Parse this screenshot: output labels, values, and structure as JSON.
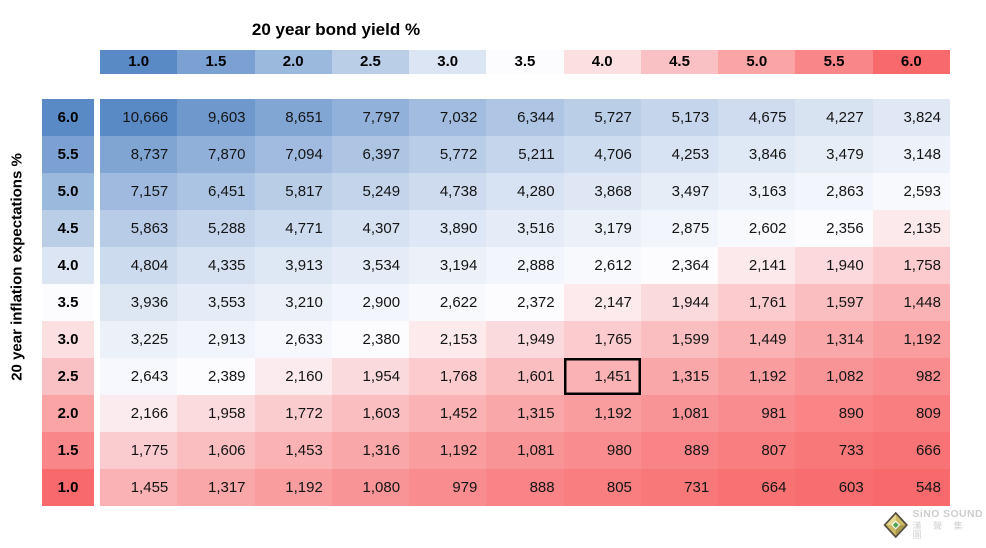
{
  "chart_data": {
    "type": "heatmap",
    "title": "20 year bond yield %",
    "ylabel": "20 year inflation expectations %",
    "x_axis_name": "20 year bond yield %",
    "y_axis_name": "20 year inflation expectations %",
    "x_values": [
      "1.0",
      "1.5",
      "2.0",
      "2.5",
      "3.0",
      "3.5",
      "4.0",
      "4.5",
      "5.0",
      "5.5",
      "6.0"
    ],
    "y_values": [
      "6.0",
      "5.5",
      "5.0",
      "4.5",
      "4.0",
      "3.5",
      "3.0",
      "2.5",
      "2.0",
      "1.5",
      "1.0"
    ],
    "values": [
      [
        10666,
        9603,
        8651,
        7797,
        7032,
        6344,
        5727,
        5173,
        4675,
        4227,
        3824
      ],
      [
        8737,
        7870,
        7094,
        6397,
        5772,
        5211,
        4706,
        4253,
        3846,
        3479,
        3148
      ],
      [
        7157,
        6451,
        5817,
        5249,
        4738,
        4280,
        3868,
        3497,
        3163,
        2863,
        2593
      ],
      [
        5863,
        5288,
        4771,
        4307,
        3890,
        3516,
        3179,
        2875,
        2602,
        2356,
        2135
      ],
      [
        4804,
        4335,
        3913,
        3534,
        3194,
        2888,
        2612,
        2364,
        2141,
        1940,
        1758
      ],
      [
        3936,
        3553,
        3210,
        2900,
        2622,
        2372,
        2147,
        1944,
        1761,
        1597,
        1448
      ],
      [
        3225,
        2913,
        2633,
        2380,
        2153,
        1949,
        1765,
        1599,
        1449,
        1314,
        1192
      ],
      [
        2643,
        2389,
        2160,
        1954,
        1768,
        1601,
        1451,
        1315,
        1192,
        1082,
        982
      ],
      [
        2166,
        1958,
        1772,
        1603,
        1452,
        1315,
        1192,
        1081,
        981,
        890,
        809
      ],
      [
        1775,
        1606,
        1453,
        1316,
        1192,
        1081,
        980,
        889,
        807,
        733,
        666
      ],
      [
        1455,
        1317,
        1192,
        1080,
        979,
        888,
        805,
        731,
        664,
        603,
        548
      ]
    ],
    "color_scale": {
      "min_color": "#F8696B",
      "mid_color": "#FCFCFF",
      "max_color": "#5A8AC6",
      "midpoint": "median",
      "note": "high values blue, low values red; column headers shaded blue(1.0)->red(6.0), row headers blue(6.0)->red(1.0)"
    },
    "highlighted_cell": {
      "row_label": "2.5",
      "col_label": "4.0",
      "value": 1451
    },
    "number_format": "thousands-comma"
  },
  "watermark": {
    "brand": "SiNO SOUND",
    "brand_cn": "漢 聲 集 團"
  }
}
